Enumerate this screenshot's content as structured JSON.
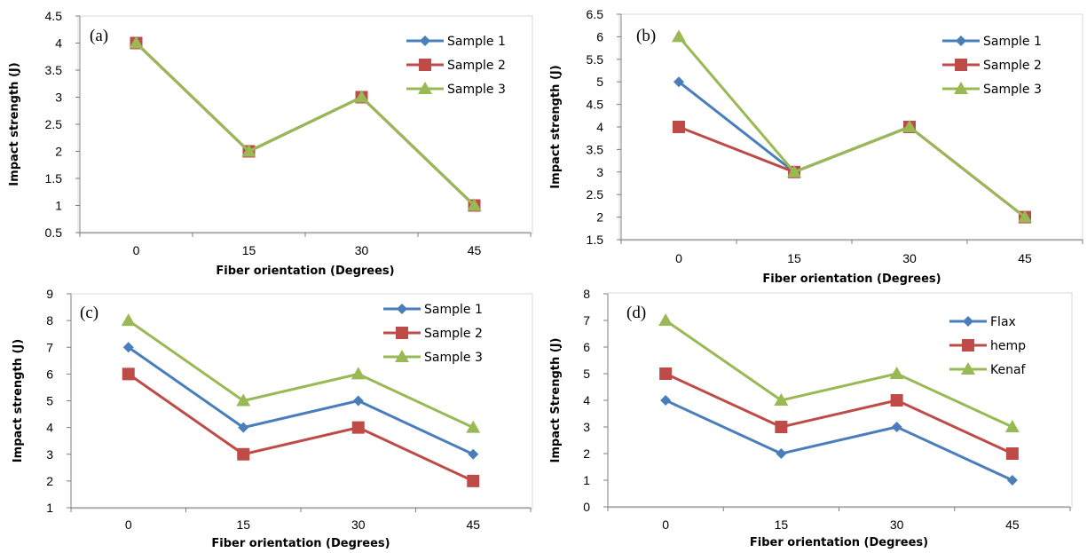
{
  "chart_data": [
    {
      "type": "line",
      "panel_label": "(a)",
      "categories": [
        "0",
        "15",
        "30",
        "45"
      ],
      "xlabel": "Fiber orientation  (Degrees)",
      "ylabel": "Impact strength (J)",
      "ylim": [
        0.5,
        4.5
      ],
      "ytick_step": 0.5,
      "yticks": [
        "0.5",
        "1",
        "1.5",
        "2",
        "2.5",
        "3",
        "3.5",
        "4",
        "4.5"
      ],
      "legend_position": "top-right",
      "series": [
        {
          "name": "Sample 1",
          "color": "#4a7ebb",
          "marker": "diamond",
          "values": [
            4,
            2,
            3,
            1
          ]
        },
        {
          "name": "Sample 2",
          "color": "#be4b48",
          "marker": "square",
          "values": [
            4,
            2,
            3,
            1
          ]
        },
        {
          "name": "Sample 3",
          "color": "#98b954",
          "marker": "triangle",
          "values": [
            4,
            2,
            3,
            1
          ]
        }
      ]
    },
    {
      "type": "line",
      "panel_label": "(b)",
      "categories": [
        "0",
        "15",
        "30",
        "45"
      ],
      "xlabel": "Fiber orientation  (Degrees)",
      "ylabel": "Impact strength (J)",
      "ylim": [
        1.5,
        6.5
      ],
      "ytick_step": 0.5,
      "yticks": [
        "1.5",
        "2",
        "2.5",
        "3",
        "3.5",
        "4",
        "4.5",
        "5",
        "5.5",
        "6",
        "6.5"
      ],
      "legend_position": "top-right",
      "series": [
        {
          "name": "Sample 1",
          "color": "#4a7ebb",
          "marker": "diamond",
          "values": [
            5,
            3,
            4,
            2
          ]
        },
        {
          "name": "Sample 2",
          "color": "#be4b48",
          "marker": "square",
          "values": [
            4,
            3,
            4,
            2
          ]
        },
        {
          "name": "Sample 3",
          "color": "#98b954",
          "marker": "triangle",
          "values": [
            6,
            3,
            4,
            2
          ]
        }
      ]
    },
    {
      "type": "line",
      "panel_label": "(c)",
      "categories": [
        "0",
        "15",
        "30",
        "45"
      ],
      "xlabel": "Fiber orientation  (Degrees)",
      "ylabel": "Impact strength (J)",
      "ylim": [
        1,
        9
      ],
      "ytick_step": 1,
      "yticks": [
        "1",
        "2",
        "3",
        "4",
        "5",
        "6",
        "7",
        "8",
        "9"
      ],
      "legend_position": "top-right",
      "series": [
        {
          "name": "Sample 1",
          "color": "#4a7ebb",
          "marker": "diamond",
          "values": [
            7,
            4,
            5,
            3
          ]
        },
        {
          "name": "Sample 2",
          "color": "#be4b48",
          "marker": "square",
          "values": [
            6,
            3,
            4,
            2
          ]
        },
        {
          "name": "Sample 3",
          "color": "#98b954",
          "marker": "triangle",
          "values": [
            8,
            5,
            6,
            4
          ]
        }
      ]
    },
    {
      "type": "line",
      "panel_label": "(d)",
      "categories": [
        "0",
        "15",
        "30",
        "45"
      ],
      "xlabel": "Fiber orientation  (Degrees)",
      "ylabel": "Impact Strength (J)",
      "ylim": [
        0,
        8
      ],
      "ytick_step": 1,
      "yticks": [
        "0",
        "1",
        "2",
        "3",
        "4",
        "5",
        "6",
        "7",
        "8"
      ],
      "legend_position": "top-right",
      "series": [
        {
          "name": "Flax",
          "color": "#4a7ebb",
          "marker": "diamond",
          "values": [
            4,
            2,
            3,
            1
          ]
        },
        {
          "name": "hemp",
          "color": "#be4b48",
          "marker": "square",
          "values": [
            5,
            3,
            4,
            2
          ]
        },
        {
          "name": "Kenaf",
          "color": "#98b954",
          "marker": "triangle",
          "values": [
            7,
            4,
            5,
            3
          ]
        }
      ]
    }
  ]
}
